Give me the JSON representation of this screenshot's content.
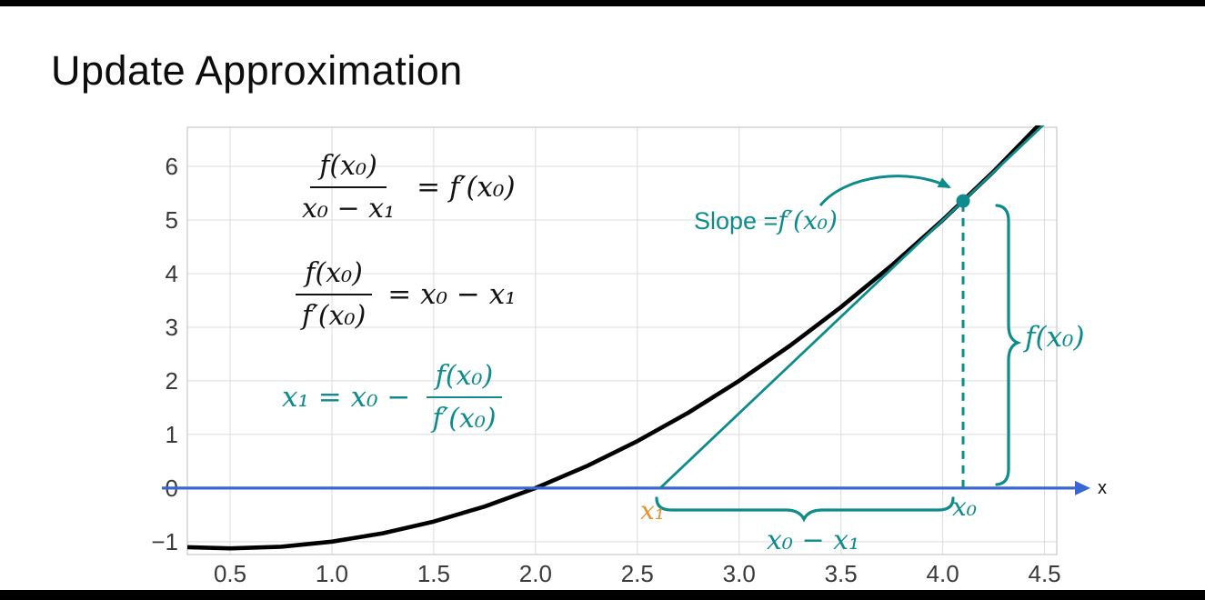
{
  "page": {
    "title": "Update Approximation",
    "x_axis_label": "x"
  },
  "chart_data": {
    "type": "line",
    "title": "",
    "xlabel": "x",
    "ylabel": "",
    "xlim": [
      0.29,
      4.56
    ],
    "ylim": [
      -1.24,
      6.73
    ],
    "grid": true,
    "legend": "none",
    "x_ticks": [
      {
        "value": 0.5,
        "label": "0.5"
      },
      {
        "value": 1.0,
        "label": "1.0"
      },
      {
        "value": 1.5,
        "label": "1.5"
      },
      {
        "value": 2.0,
        "label": "2.0"
      },
      {
        "value": 2.5,
        "label": "2.5"
      },
      {
        "value": 3.0,
        "label": "3.0"
      },
      {
        "value": 3.5,
        "label": "3.5"
      },
      {
        "value": 4.0,
        "label": "4.0"
      },
      {
        "value": 4.5,
        "label": "4.5"
      }
    ],
    "y_ticks": [
      {
        "value": 6,
        "label": "6"
      },
      {
        "value": 5,
        "label": "5"
      },
      {
        "value": 4,
        "label": "4"
      },
      {
        "value": 3,
        "label": "3"
      },
      {
        "value": 2,
        "label": "2"
      },
      {
        "value": 1,
        "label": "1"
      },
      {
        "value": 0,
        "label": "0"
      },
      {
        "value": -1,
        "label": "−1"
      }
    ],
    "series": [
      {
        "name": "f(x) curve",
        "color": "#000000",
        "points": [
          [
            0.29,
            -1.103
          ],
          [
            0.5,
            -1.125
          ],
          [
            0.75,
            -1.094
          ],
          [
            1.0,
            -1.0
          ],
          [
            1.25,
            -0.844
          ],
          [
            1.5,
            -0.625
          ],
          [
            1.75,
            -0.344
          ],
          [
            2.0,
            0.0
          ],
          [
            2.25,
            0.406
          ],
          [
            2.5,
            0.875
          ],
          [
            2.75,
            1.406
          ],
          [
            3.0,
            2.0
          ],
          [
            3.25,
            2.656
          ],
          [
            3.5,
            3.375
          ],
          [
            3.75,
            4.156
          ],
          [
            4.0,
            5.0
          ],
          [
            4.25,
            5.906
          ],
          [
            4.56,
            7.117
          ]
        ]
      },
      {
        "name": "tangent line at x0",
        "color": "#0e8b8d",
        "points": [
          [
            2.6125,
            0.0
          ],
          [
            4.56,
            7.01
          ]
        ]
      }
    ],
    "annotations": {
      "tangent_point": [
        4.1,
        5.355
      ],
      "x0": 4.1,
      "x1": 2.6125,
      "f_x0": 5.355,
      "slope_f_prime_x0": 3.6
    }
  },
  "formulas": {
    "eq1_num": "f(x₀)",
    "eq1_den": "x₀ − x₁",
    "eq1_rhs": "= f′(x₀)",
    "eq2_num": "f(x₀)",
    "eq2_den": "f′(x₀)",
    "eq2_rhs": "= x₀ − x₁",
    "eq3_lhs": "x₁ = x₀ −",
    "eq3_num": "f(x₀)",
    "eq3_den": "f′(x₀)"
  },
  "labels": {
    "slope_prefix": "Slope = ",
    "slope_math": "f′(x₀)",
    "f_x0": "f(x₀)",
    "x0_minus_x1": "x₀ − x₁",
    "x1": "x₁",
    "x0": "x₀"
  },
  "colors": {
    "teal": "#0e8b8d",
    "blue": "#3a66d4",
    "orange": "#e2932f",
    "curve": "#000000",
    "grid": "#dcdcdc"
  }
}
